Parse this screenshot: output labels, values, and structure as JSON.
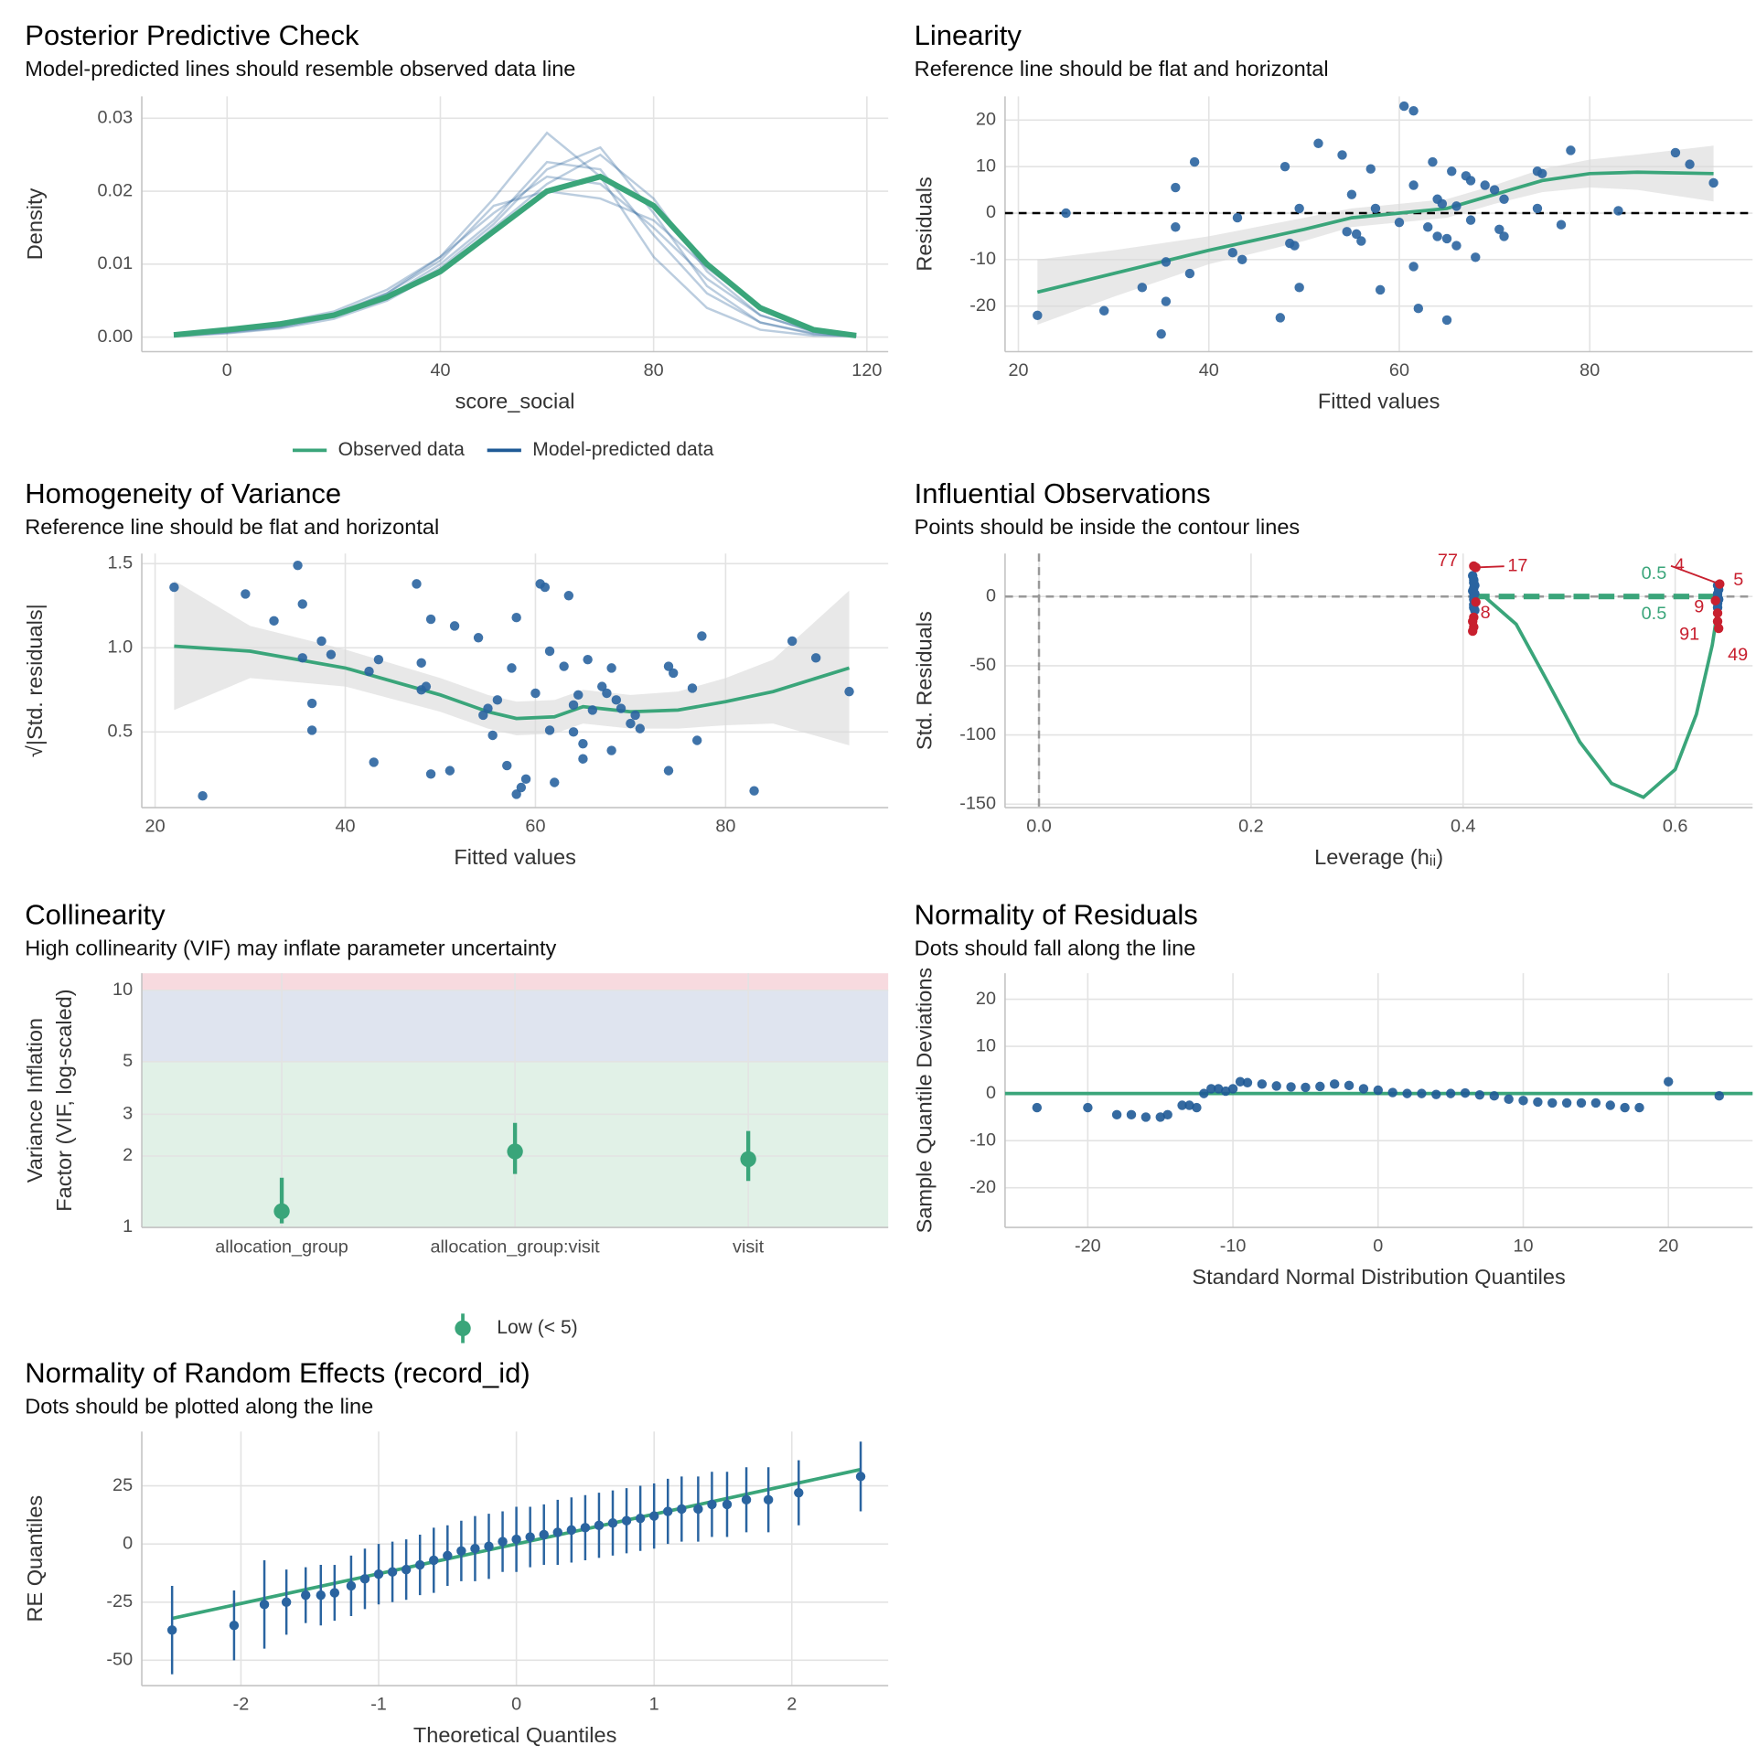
{
  "chart_data": [
    {
      "type": "line",
      "title": "Posterior Predictive Check",
      "subtitle": "Model-predicted lines should resemble observed data line",
      "x_label": "score_social",
      "y_label": "Density",
      "xlim": [
        -16,
        124
      ],
      "ylim": [
        -0.002,
        0.033
      ],
      "xticks": [
        0,
        40,
        80,
        120
      ],
      "yticks": [
        {
          "value": 0,
          "label": "0.00"
        },
        0.01,
        0.02,
        0.03
      ],
      "x": [
        -10,
        0,
        10,
        20,
        30,
        40,
        50,
        60,
        70,
        80,
        90,
        100,
        110,
        118
      ],
      "series": [
        {
          "name": "Observed data",
          "color": "#3aa57a",
          "values": [
            0.0003,
            0.001,
            0.0018,
            0.003,
            0.0055,
            0.009,
            0.0145,
            0.02,
            0.022,
            0.018,
            0.01,
            0.004,
            0.001,
            0.0002
          ]
        },
        {
          "name": "Model-predicted data",
          "color": "#1f5a96",
          "values": [
            [
              0.0002,
              0.0008,
              0.0015,
              0.003,
              0.006,
              0.011,
              0.019,
              0.028,
              0.022,
              0.011,
              0.004,
              0.001,
              0.0002,
              0.0001
            ],
            [
              0.0003,
              0.001,
              0.002,
              0.0035,
              0.0065,
              0.011,
              0.017,
              0.022,
              0.021,
              0.015,
              0.008,
              0.003,
              0.0008,
              0.0002
            ],
            [
              0.0001,
              0.0005,
              0.0012,
              0.0025,
              0.005,
              0.009,
              0.015,
              0.021,
              0.025,
              0.019,
              0.009,
              0.003,
              0.0007,
              0.0001
            ],
            [
              0.0002,
              0.0007,
              0.0015,
              0.003,
              0.0055,
              0.01,
              0.016,
              0.024,
              0.023,
              0.014,
              0.006,
              0.002,
              0.0004,
              0.0001
            ],
            [
              0.0002,
              0.0009,
              0.0018,
              0.0032,
              0.006,
              0.0105,
              0.018,
              0.02,
              0.019,
              0.016,
              0.0095,
              0.004,
              0.0011,
              0.0002
            ],
            [
              0.0001,
              0.0006,
              0.0013,
              0.0028,
              0.0052,
              0.0095,
              0.0155,
              0.023,
              0.026,
              0.017,
              0.007,
              0.002,
              0.0005,
              0.0001
            ]
          ]
        }
      ]
    },
    {
      "type": "scatter",
      "title": "Linearity",
      "subtitle": "Reference line should be flat and horizontal",
      "x_label": "Fitted values",
      "y_label": "Residuals",
      "xlim": [
        18.6,
        97.1
      ],
      "ylim": [
        -29.8,
        25.1
      ],
      "xticks": [
        20,
        40,
        60,
        80
      ],
      "yticks": [
        -20,
        -10,
        0,
        10,
        20
      ],
      "color": "#2a64a0",
      "hline": 0,
      "hline_color": "#000000",
      "x": [
        22,
        25,
        29,
        33,
        35,
        35.5,
        35.5,
        36.5,
        36.5,
        38,
        38.5,
        42.5,
        43,
        43.5,
        47.5,
        48,
        48.5,
        49,
        49.5,
        49.5,
        51.5,
        54,
        54.5,
        55,
        55.5,
        56,
        57,
        57.5,
        58,
        60,
        60.5,
        61.5,
        61.5,
        61.5,
        62,
        63,
        63.5,
        64,
        64,
        64.5,
        65,
        65,
        65.5,
        66,
        66,
        67,
        67.5,
        67.5,
        68,
        69,
        70,
        70.5,
        71,
        71,
        74.5,
        74.5,
        75,
        77,
        78,
        83,
        89,
        90.5,
        93
      ],
      "y": [
        -22,
        0,
        -21,
        -16,
        -26,
        -19,
        -10.5,
        -3,
        5.5,
        -13,
        11,
        -8.5,
        -1,
        -10,
        -22.5,
        10,
        -6.5,
        -7,
        -16,
        1,
        15,
        12.5,
        -4,
        4,
        -4.5,
        -6,
        9.5,
        1,
        -16.5,
        -2,
        23,
        22,
        -11.5,
        6,
        -20.5,
        -3,
        11,
        -5,
        3,
        2,
        -5.5,
        -23,
        9,
        -7,
        1.5,
        8,
        -1.5,
        7,
        -9.5,
        6,
        5,
        -3.5,
        3,
        -5,
        9,
        1,
        8.5,
        -2.5,
        13.5,
        0.5,
        13,
        10.5,
        6.5
      ],
      "smooth": {
        "color": "#3aa57a",
        "x": [
          22,
          30,
          40,
          50,
          55,
          60,
          65,
          70,
          75,
          80,
          85,
          93
        ],
        "y": [
          -17,
          -13,
          -8,
          -3.5,
          -1,
          0,
          1,
          4,
          7,
          8.5,
          8.8,
          8.5
        ],
        "lower": [
          -24,
          -18,
          -11,
          -6,
          -3,
          -2,
          -1,
          2,
          4.5,
          5.5,
          5,
          2.5
        ],
        "upper": [
          -10,
          -8,
          -5,
          -1,
          1,
          2,
          3,
          6,
          9.5,
          11.5,
          12.6,
          14.5
        ]
      }
    },
    {
      "type": "scatter",
      "title": "Homogeneity of Variance",
      "subtitle": "Reference line should be flat and horizontal",
      "x_label": "Fitted values",
      "y_label": "√|Std. residuals|",
      "xlim": [
        18.6,
        97.1
      ],
      "ylim": [
        0.05,
        1.56
      ],
      "xticks": [
        20,
        40,
        60,
        80
      ],
      "yticks": [
        0.5,
        {
          "value": 1,
          "label": "1.0"
        },
        1.5
      ],
      "color": "#2a64a0",
      "x": [
        22,
        25,
        29.5,
        32.5,
        35,
        35.5,
        35.5,
        36.5,
        36.5,
        37.5,
        38.5,
        42.5,
        43,
        43.5,
        47.5,
        48,
        48,
        48.5,
        49,
        49,
        51,
        51.5,
        54,
        54.5,
        55,
        55.5,
        56,
        57,
        57.5,
        58,
        58,
        58.5,
        59,
        60,
        60.5,
        61,
        61.5,
        61.5,
        62,
        63,
        63.5,
        64,
        64,
        64.5,
        65,
        65,
        65.5,
        66,
        67,
        67.5,
        68,
        68,
        68.5,
        69,
        70,
        70.5,
        71,
        74,
        74,
        74.5,
        76.5,
        77,
        77.5,
        83,
        87,
        89.5,
        93
      ],
      "y": [
        1.36,
        0.12,
        1.32,
        1.16,
        1.49,
        1.26,
        0.94,
        0.67,
        0.51,
        1.04,
        0.96,
        0.86,
        0.32,
        0.93,
        1.38,
        0.91,
        0.75,
        0.77,
        1.17,
        0.25,
        0.27,
        1.13,
        1.06,
        0.6,
        0.64,
        0.48,
        0.69,
        0.3,
        0.88,
        0.13,
        1.18,
        0.17,
        0.22,
        0.73,
        1.38,
        1.36,
        0.51,
        0.98,
        0.2,
        0.89,
        1.31,
        0.5,
        0.66,
        0.72,
        0.43,
        0.34,
        0.93,
        0.63,
        0.77,
        0.73,
        0.88,
        0.39,
        0.69,
        0.64,
        0.55,
        0.6,
        0.52,
        0.89,
        0.27,
        0.85,
        0.76,
        0.45,
        1.07,
        0.15,
        1.04,
        0.94,
        0.74
      ],
      "smooth": {
        "color": "#3aa57a",
        "x": [
          22,
          30,
          40,
          50,
          55,
          58,
          62,
          65,
          70,
          75,
          80,
          85,
          93
        ],
        "y": [
          1.01,
          0.98,
          0.88,
          0.72,
          0.62,
          0.58,
          0.59,
          0.65,
          0.62,
          0.63,
          0.68,
          0.74,
          0.88
        ],
        "lower": [
          0.63,
          0.82,
          0.77,
          0.62,
          0.52,
          0.48,
          0.49,
          0.55,
          0.52,
          0.52,
          0.54,
          0.55,
          0.42
        ],
        "upper": [
          1.4,
          1.13,
          0.99,
          0.82,
          0.72,
          0.68,
          0.69,
          0.75,
          0.72,
          0.74,
          0.82,
          0.93,
          1.34
        ]
      }
    },
    {
      "type": "influence",
      "title": "Influential Observations",
      "subtitle": "Points should be inside the contour lines",
      "x_label": "Leverage (hᵢᵢ)",
      "y_label": "Std. Residuals",
      "xlim": [
        -0.032,
        0.673
      ],
      "ylim": [
        -152.5,
        31
      ],
      "xticks": [
        {
          "value": 0,
          "label": "0.0"
        },
        0.2,
        0.4,
        0.6
      ],
      "yticks": [
        -150,
        -100,
        -50,
        0
      ],
      "hline": 0,
      "vline": 0,
      "series": [
        {
          "color": "#2a64a0",
          "x": [
            0.409,
            0.41,
            0.41,
            0.411,
            0.41,
            0.409,
            0.411,
            0.41,
            0.41,
            0.41,
            0.41,
            0.411,
            0.64,
            0.641,
            0.64,
            0.64,
            0.641,
            0.64,
            0.64
          ],
          "y": [
            15,
            12,
            10,
            8,
            6,
            4,
            2,
            0,
            -2,
            -6,
            -8,
            -10,
            8,
            5,
            2,
            0,
            -2,
            -5,
            -8
          ]
        },
        {
          "color": "#c8202f",
          "x": [
            0.41,
            0.412,
            0.41,
            0.409,
            0.41,
            0.409,
            0.412,
            0.642,
            0.638,
            0.64,
            0.64,
            0.641
          ],
          "y": [
            22,
            21,
            -15,
            -18,
            -22,
            -25,
            -4,
            9,
            -3,
            -12,
            -18,
            -23
          ]
        }
      ],
      "contour": {
        "color": "#3aa57a",
        "x": [
          0.42,
          0.45,
          0.48,
          0.51,
          0.54,
          0.57,
          0.6,
          0.62,
          0.635,
          0.642
        ],
        "y": [
          0,
          -20,
          -62,
          -105,
          -135,
          -145,
          -125,
          -85,
          -35,
          0
        ]
      },
      "contour_dashed": {
        "x": [
          0.41,
          0.64
        ],
        "y": [
          0,
          0
        ]
      },
      "contour_labels": [
        {
          "text": "0.5",
          "x": 0.58,
          "y": 16
        },
        {
          "text": "0.5",
          "x": 0.58,
          "y": -13
        }
      ],
      "point_labels": [
        {
          "text": "77",
          "x": 0.41,
          "y": 22
        },
        {
          "text": "17",
          "x": 0.412,
          "y": 21
        },
        {
          "text": "8",
          "x": 0.412,
          "y": -4
        },
        {
          "text": "4",
          "x": 0.642,
          "y": 9
        },
        {
          "text": "5",
          "x": 0.642,
          "y": 9
        },
        {
          "text": "9",
          "x": 0.638,
          "y": -3
        },
        {
          "text": "91",
          "x": 0.64,
          "y": -18
        },
        {
          "text": "49",
          "x": 0.641,
          "y": -23
        }
      ]
    },
    {
      "type": "dot_errorbar",
      "title": "Collinearity",
      "subtitle": "High collinearity (VIF) may inflate parameter uncertainty",
      "y_label": [
        "Variance Inflation",
        "Factor (VIF, log-scaled)"
      ],
      "log_scale": true,
      "ylim": [
        1,
        11.8
      ],
      "yticks": [
        1,
        2,
        3,
        5,
        10
      ],
      "categories": [
        "allocation_group",
        "allocation_group:visit",
        "visit"
      ],
      "bands": [
        {
          "from": 1,
          "to": 5,
          "color": "#e1f1e7"
        },
        {
          "from": 5,
          "to": 10,
          "color": "#dfe4ef"
        },
        {
          "from": 10,
          "to": 11.8,
          "color": "#f7dadf"
        }
      ],
      "series": [
        {
          "name": "Low (< 5)",
          "color": "#3aa57a",
          "values": [
            1.17,
            2.09,
            1.94
          ],
          "lower": [
            1.04,
            1.68,
            1.57
          ],
          "upper": [
            1.62,
            2.76,
            2.55
          ]
        }
      ]
    },
    {
      "type": "scatter",
      "title": "Normality of Residuals",
      "subtitle": "Dots should fall along the line",
      "x_label": "Standard Normal Distribution Quantiles",
      "y_label": "Sample Quantile Deviations",
      "xlim": [
        -25.7,
        25.8
      ],
      "ylim": [
        -28.4,
        25.5
      ],
      "xticks": [
        -20,
        -10,
        0,
        10,
        20
      ],
      "yticks": [
        -20,
        -10,
        0,
        10,
        20
      ],
      "color": "#1f5a96",
      "line": {
        "color": "#3aa57a",
        "x": [
          -25.7,
          25.8
        ],
        "y": [
          0,
          0
        ]
      },
      "x": [
        -23.5,
        -20,
        -18,
        -17,
        -16,
        -15,
        -14.5,
        -13.5,
        -13,
        -12.5,
        -12,
        -11.5,
        -11,
        -10.5,
        -10,
        -9.5,
        -9,
        -8,
        -7,
        -6,
        -5,
        -4,
        -3,
        -2,
        -1,
        0,
        1,
        2,
        3,
        4,
        5,
        6,
        7,
        8,
        9,
        10,
        11,
        12,
        13,
        14,
        15,
        16,
        17,
        18,
        20,
        23.5
      ],
      "y": [
        -3,
        -3,
        -4.5,
        -4.5,
        -5,
        -5,
        -4.5,
        -2.5,
        -2.5,
        -3,
        0,
        1,
        1,
        0.5,
        1,
        2.5,
        2.3,
        2,
        1.6,
        1.4,
        1.3,
        1.5,
        2,
        1.7,
        1,
        0.7,
        0.2,
        0,
        0,
        -0.2,
        0,
        0.1,
        -0.3,
        -0.5,
        -1.2,
        -1.5,
        -1.8,
        -2,
        -2,
        -2,
        -2,
        -2.5,
        -3,
        -3,
        2.5,
        -0.5
      ]
    },
    {
      "type": "qq_errorbar",
      "title": "Normality of Random Effects (record_id)",
      "subtitle": "Dots should be plotted along the line",
      "x_label": "Theoretical Quantiles",
      "y_label": "RE Quantiles",
      "xlim": [
        -2.72,
        2.7
      ],
      "ylim": [
        -60.9,
        48.3
      ],
      "xticks": [
        -2,
        -1,
        0,
        1,
        2
      ],
      "yticks": [
        -50,
        -25,
        0,
        25
      ],
      "color": "#2a64a0",
      "line": {
        "color": "#3aa57a",
        "x": [
          -2.5,
          2.5
        ],
        "y": [
          -32,
          32
        ]
      },
      "x": [
        -2.5,
        -2.05,
        -1.83,
        -1.67,
        -1.53,
        -1.42,
        -1.32,
        -1.2,
        -1.1,
        -1,
        -0.9,
        -0.8,
        -0.7,
        -0.6,
        -0.5,
        -0.4,
        -0.3,
        -0.2,
        -0.1,
        0,
        0.1,
        0.2,
        0.3,
        0.4,
        0.5,
        0.6,
        0.7,
        0.8,
        0.9,
        1,
        1.1,
        1.2,
        1.32,
        1.42,
        1.53,
        1.67,
        1.83,
        2.05,
        2.5
      ],
      "values": [
        -37,
        -35,
        -26,
        -25,
        -22,
        -22,
        -21,
        -18,
        -15,
        -13,
        -12,
        -11,
        -9,
        -7,
        -5,
        -3,
        -2,
        -1,
        1,
        2,
        3,
        4,
        5,
        6,
        7,
        8,
        9,
        10,
        11,
        12,
        14,
        15,
        15,
        17,
        17,
        19,
        19,
        22,
        29
      ],
      "errors": [
        19,
        15,
        19,
        14,
        12,
        13,
        12,
        13,
        13,
        13,
        13,
        13,
        13,
        14,
        13,
        13,
        14,
        14,
        13,
        14,
        13,
        13,
        14,
        14,
        14,
        14,
        14,
        14,
        14,
        14,
        14,
        14,
        14,
        14,
        14,
        14,
        14,
        14,
        15
      ]
    }
  ]
}
